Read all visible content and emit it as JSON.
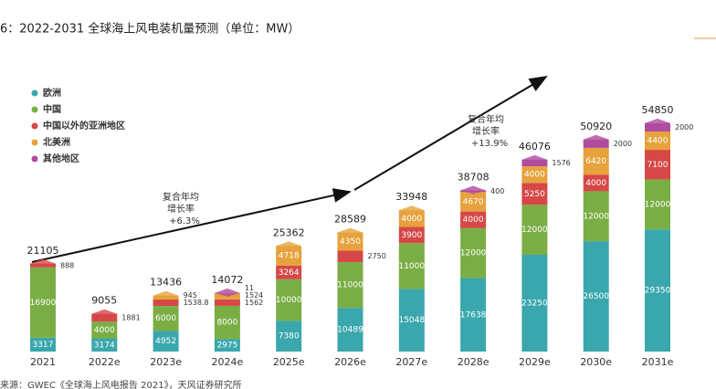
{
  "chart_data": {
    "type": "bar",
    "stacked": true,
    "title": "6：2022-2031 全球海上风电装机量预测（单位：MW）",
    "source": "来源：GWEC《全球海上风电报告 2021》，天风证券研究所",
    "categories": [
      "2021",
      "2022e",
      "2023e",
      "2024e",
      "2025e",
      "2026e",
      "2027e",
      "2028e",
      "2029e",
      "2030e",
      "2031e"
    ],
    "series": [
      {
        "name": "欧洲",
        "color": "#3aa7ad",
        "values": [
          3317,
          3174,
          4952,
          2975,
          7380,
          10489,
          15048,
          17638,
          23250,
          26500,
          29350
        ]
      },
      {
        "name": "中国",
        "color": "#7aae45",
        "values": [
          16900,
          4000,
          6000,
          8000,
          10000,
          11000,
          11000,
          12000,
          12000,
          12000,
          12000
        ]
      },
      {
        "name": "中国以外的亚洲地区",
        "color": "#d64848",
        "values": [
          888,
          1881,
          1538.8,
          1562,
          3264,
          2750,
          3900,
          4000,
          5250,
          4000,
          7100
        ]
      },
      {
        "name": "北美洲",
        "color": "#e6a23c",
        "values": [
          null,
          null,
          945,
          1524,
          4718,
          4350,
          4000,
          4670,
          4000,
          6420,
          4400
        ]
      },
      {
        "name": "其他地区",
        "color": "#b04b9f",
        "values": [
          null,
          null,
          null,
          11,
          null,
          null,
          null,
          400,
          1576,
          2000,
          2000
        ]
      }
    ],
    "totals": [
      21105,
      9055,
      13436,
      14072,
      25362,
      28589,
      33948,
      38708,
      46076,
      50920,
      54850
    ],
    "annotations": [
      {
        "lines": [
          "复合年均",
          "增长率",
          "+6.3%"
        ]
      },
      {
        "lines": [
          "复合年均",
          "增长率",
          "+13.9%"
        ]
      }
    ]
  }
}
